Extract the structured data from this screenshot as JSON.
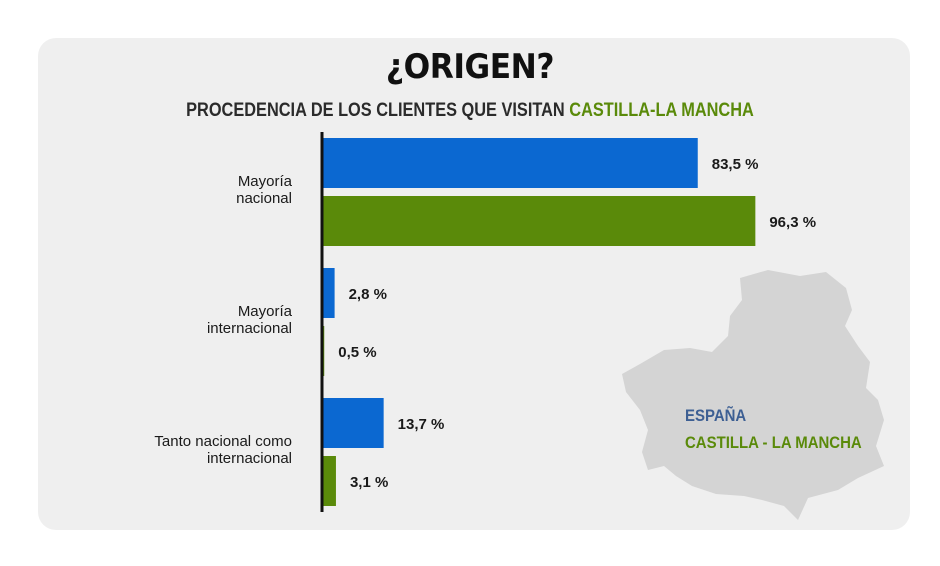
{
  "header": {
    "title": "¿ORIGEN?",
    "subtitle_main": "PROCEDENCIA DE LOS CLIENTES QUE VISITAN ",
    "subtitle_accent": "CASTILLA-LA MANCHA"
  },
  "legend": {
    "spain": "ESPAÑA",
    "clm": "CASTILLA - LA MANCHA"
  },
  "colors": {
    "spain": "#0b68d1",
    "clm": "#5a8a0a",
    "map": "#d4d4d4",
    "axis": "#111111"
  },
  "chart_data": {
    "type": "bar",
    "orientation": "horizontal",
    "categories": [
      [
        "Mayoría",
        "nacional"
      ],
      [
        "Mayoría",
        "internacional"
      ],
      [
        "Tanto nacional como",
        "internacional"
      ]
    ],
    "series": [
      {
        "name": "ESPAÑA",
        "values": [
          83.5,
          2.8,
          13.7
        ],
        "labels": [
          "83,5 %",
          "2,8 %",
          "13,7 %"
        ]
      },
      {
        "name": "CASTILLA - LA MANCHA",
        "values": [
          96.3,
          0.5,
          3.1
        ],
        "labels": [
          "96,3 %",
          "0,5 %",
          "3,1 %"
        ]
      }
    ],
    "xlim": [
      0,
      100
    ],
    "grid": false,
    "legend_position": "bottom-right"
  }
}
